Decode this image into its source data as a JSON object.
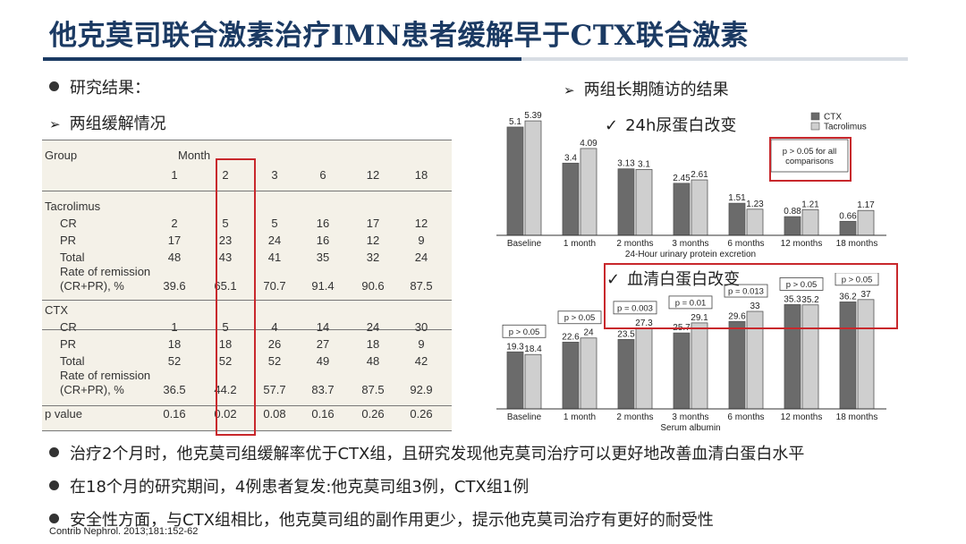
{
  "title": "他克莫司联合激素治疗IMN患者缓解早于CTX联合激素",
  "left_heading": "研究结果：",
  "left_sub": "两组缓解情况",
  "right_heading": "两组长期随访的结果",
  "top_chart_caption": "24h尿蛋白改变",
  "bottom_chart_caption": "血清白蛋白改变",
  "table": {
    "group_header": "Group",
    "month_header": "Month",
    "months": [
      "1",
      "2",
      "3",
      "6",
      "12",
      "18"
    ],
    "tac_label": "Tacrolimus",
    "ctx_label": "CTX",
    "row_labels": [
      "CR",
      "PR",
      "Total",
      "Rate of remission",
      "(CR+PR), %"
    ],
    "p_label": "p value",
    "tac_rows": [
      [
        "2",
        "5",
        "5",
        "16",
        "17",
        "12"
      ],
      [
        "17",
        "23",
        "24",
        "16",
        "12",
        "9"
      ],
      [
        "48",
        "43",
        "41",
        "35",
        "32",
        "24"
      ],
      [
        "39.6",
        "65.1",
        "70.7",
        "91.4",
        "90.6",
        "87.5"
      ]
    ],
    "ctx_rows": [
      [
        "1",
        "5",
        "4",
        "14",
        "24",
        "30"
      ],
      [
        "18",
        "18",
        "26",
        "27",
        "18",
        "9"
      ],
      [
        "52",
        "52",
        "52",
        "49",
        "48",
        "42"
      ],
      [
        "36.5",
        "44.2",
        "57.7",
        "83.7",
        "87.5",
        "92.9"
      ]
    ],
    "p_row": [
      "0.16",
      "0.02",
      "0.08",
      "0.16",
      "0.26",
      "0.26"
    ]
  },
  "bullets": [
    "治疗2个月时，他克莫司组缓解率优于CTX组，且研究发现他克莫司治疗可以更好地改善血清白蛋白水平",
    "在18个月的研究期间，4例患者复发:他克莫司组3例，CTX组1例",
    "安全性方面，与CTX组相比，他克莫司组的副作用更少，提示他克莫司治疗有更好的耐受性"
  ],
  "footnote": "Contrib Nephrol. 2013;181:152-62",
  "colors": {
    "ctx": "#6b6b6b",
    "tacrolimus": "#cfcfcf",
    "title": "#1b3a63",
    "highlight": "#c8282c"
  },
  "chart_data": [
    {
      "type": "bar",
      "xlabel": "24-Hour urinary protein excretion",
      "categories": [
        "Baseline",
        "1 month",
        "2 months",
        "3 months",
        "6 months",
        "12 months",
        "18 months"
      ],
      "series": [
        {
          "name": "CTX",
          "values": [
            5.1,
            3.4,
            3.13,
            2.45,
            1.51,
            0.88,
            0.66
          ]
        },
        {
          "name": "Tacrolimus",
          "values": [
            5.39,
            4.09,
            3.1,
            2.61,
            1.23,
            1.21,
            1.17
          ]
        }
      ],
      "value_labels": {
        "CTX": [
          "5.1",
          "3.4",
          "3.13",
          "2.45",
          "1.51",
          "0.88",
          "0.66"
        ],
        "Tacrolimus": [
          "5.39",
          "4.09",
          "3.1",
          "2.61",
          "1.23",
          "1.21",
          "1.17"
        ]
      },
      "ylim": [
        0,
        5.9
      ],
      "annotation": "p > 0.05 for all comparisons",
      "legend": "top-right"
    },
    {
      "type": "bar",
      "xlabel": "Serum albumin",
      "categories": [
        "Baseline",
        "1 month",
        "2 months",
        "3 months",
        "6 months",
        "12 months",
        "18 months"
      ],
      "series": [
        {
          "name": "CTX",
          "values": [
            19.3,
            22.6,
            23.5,
            25.7,
            29.6,
            35.3,
            36.2
          ]
        },
        {
          "name": "Tacrolimus",
          "values": [
            18.4,
            24,
            27.3,
            29.1,
            33,
            35.2,
            37
          ]
        }
      ],
      "value_labels": {
        "CTX": [
          "19.3",
          "22.6",
          "23.5",
          "25.7",
          "29.6",
          "35.3",
          "36.2"
        ],
        "Tacrolimus": [
          "18.4",
          "24",
          "27.3",
          "29.1",
          "33",
          "35.2",
          "37"
        ]
      },
      "ylim": [
        0,
        43
      ],
      "p_values": [
        "p > 0.05",
        "p > 0.05",
        "p = 0.003",
        "p = 0.01",
        "p = 0.013",
        "p > 0.05",
        "p > 0.05"
      ]
    }
  ]
}
